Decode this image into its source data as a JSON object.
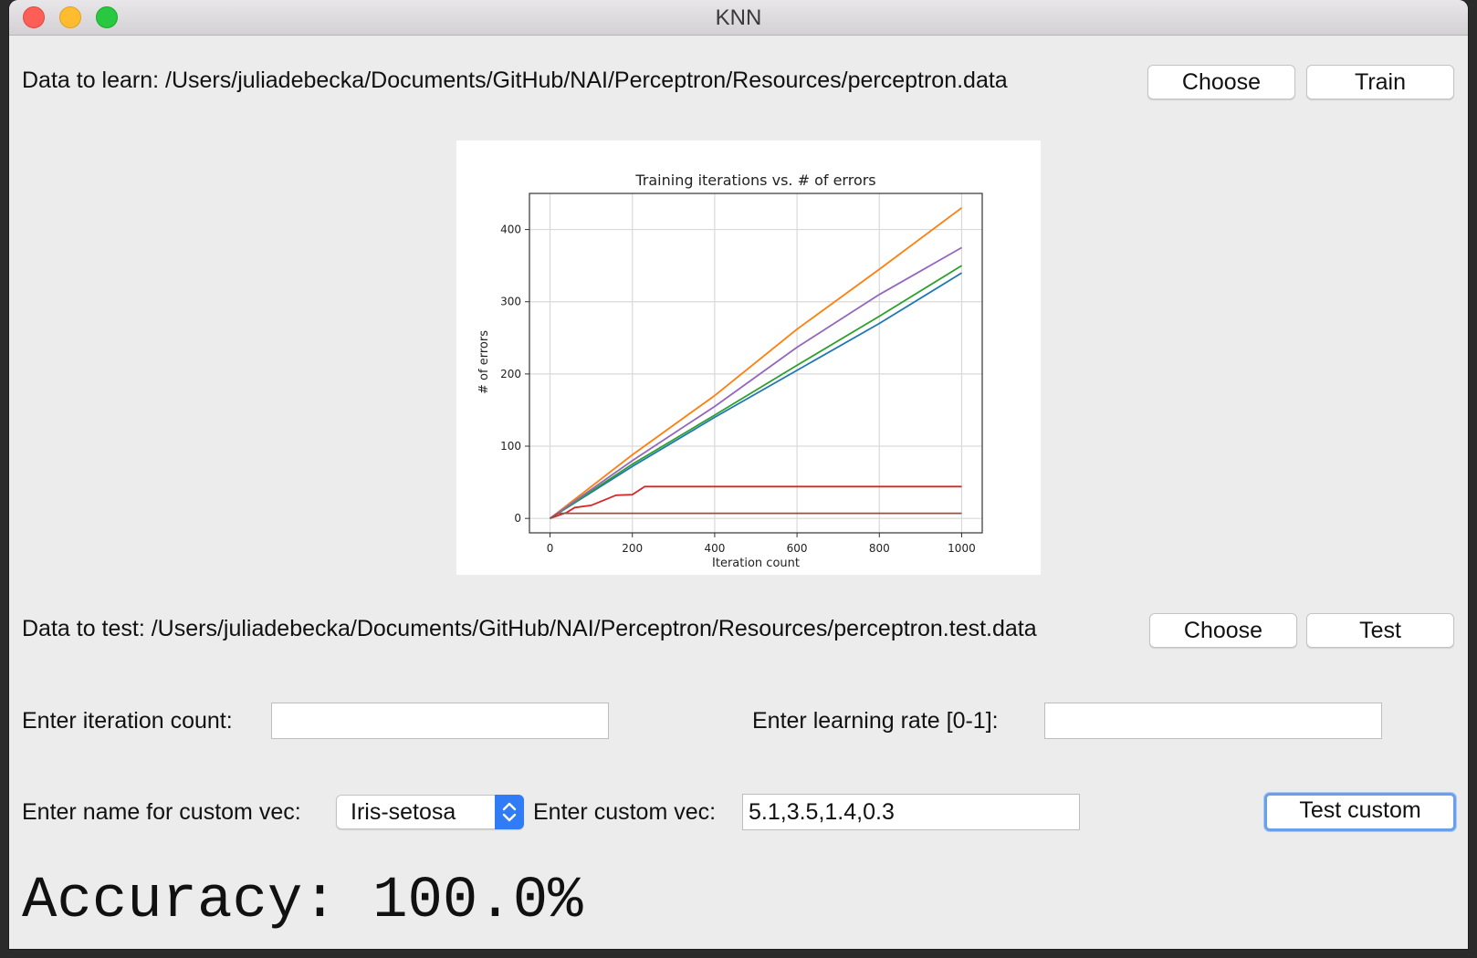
{
  "window": {
    "title": "KNN"
  },
  "learn": {
    "label": "Data to learn: /Users/juliadebecka/Documents/GitHub/NAI/Perceptron/Resources/perceptron.data",
    "choose_label": "Choose",
    "train_label": "Train"
  },
  "test": {
    "label": "Data to test: /Users/juliadebecka/Documents/GitHub/NAI/Perceptron/Resources/perceptron.test.data",
    "choose_label": "Choose",
    "test_label": "Test"
  },
  "params": {
    "iteration_label": "Enter iteration count:",
    "iteration_value": "",
    "learning_rate_label": "Enter learning rate [0-1]:",
    "learning_rate_value": ""
  },
  "custom": {
    "name_label": "Enter name for custom vec:",
    "name_selected": "Iris-setosa",
    "vec_label": "Enter custom vec:",
    "vec_value": "5.1,3.5,1.4,0.3",
    "test_custom_label": "Test custom"
  },
  "result": {
    "accuracy_text": "Accuracy: 100.0%"
  },
  "chart_data": {
    "type": "line",
    "title": "Training iterations vs. # of errors",
    "xlabel": "Iteration count",
    "ylabel": "# of errors",
    "xlim": [
      -50,
      1050
    ],
    "ylim": [
      -20,
      450
    ],
    "x_ticks": [
      0,
      200,
      400,
      600,
      800,
      1000
    ],
    "y_ticks": [
      0,
      100,
      200,
      300,
      400
    ],
    "grid": true,
    "series": [
      {
        "color": "#1f77b4",
        "x": [
          0,
          200,
          400,
          600,
          800,
          1000
        ],
        "y": [
          0,
          72,
          140,
          205,
          270,
          340
        ]
      },
      {
        "color": "#ff7f0e",
        "x": [
          0,
          200,
          400,
          600,
          800,
          1000
        ],
        "y": [
          0,
          88,
          170,
          262,
          345,
          430
        ]
      },
      {
        "color": "#2ca02c",
        "x": [
          0,
          200,
          400,
          600,
          800,
          1000
        ],
        "y": [
          0,
          75,
          143,
          212,
          280,
          350
        ]
      },
      {
        "color": "#d62728",
        "x": [
          0,
          40,
          60,
          100,
          160,
          200,
          230,
          1000
        ],
        "y": [
          0,
          8,
          15,
          18,
          32,
          33,
          44,
          44
        ]
      },
      {
        "color": "#9467bd",
        "x": [
          0,
          200,
          400,
          600,
          800,
          1000
        ],
        "y": [
          0,
          80,
          155,
          237,
          310,
          375
        ]
      },
      {
        "color": "#8c564b",
        "x": [
          0,
          20,
          1000
        ],
        "y": [
          0,
          7,
          7
        ]
      }
    ]
  }
}
